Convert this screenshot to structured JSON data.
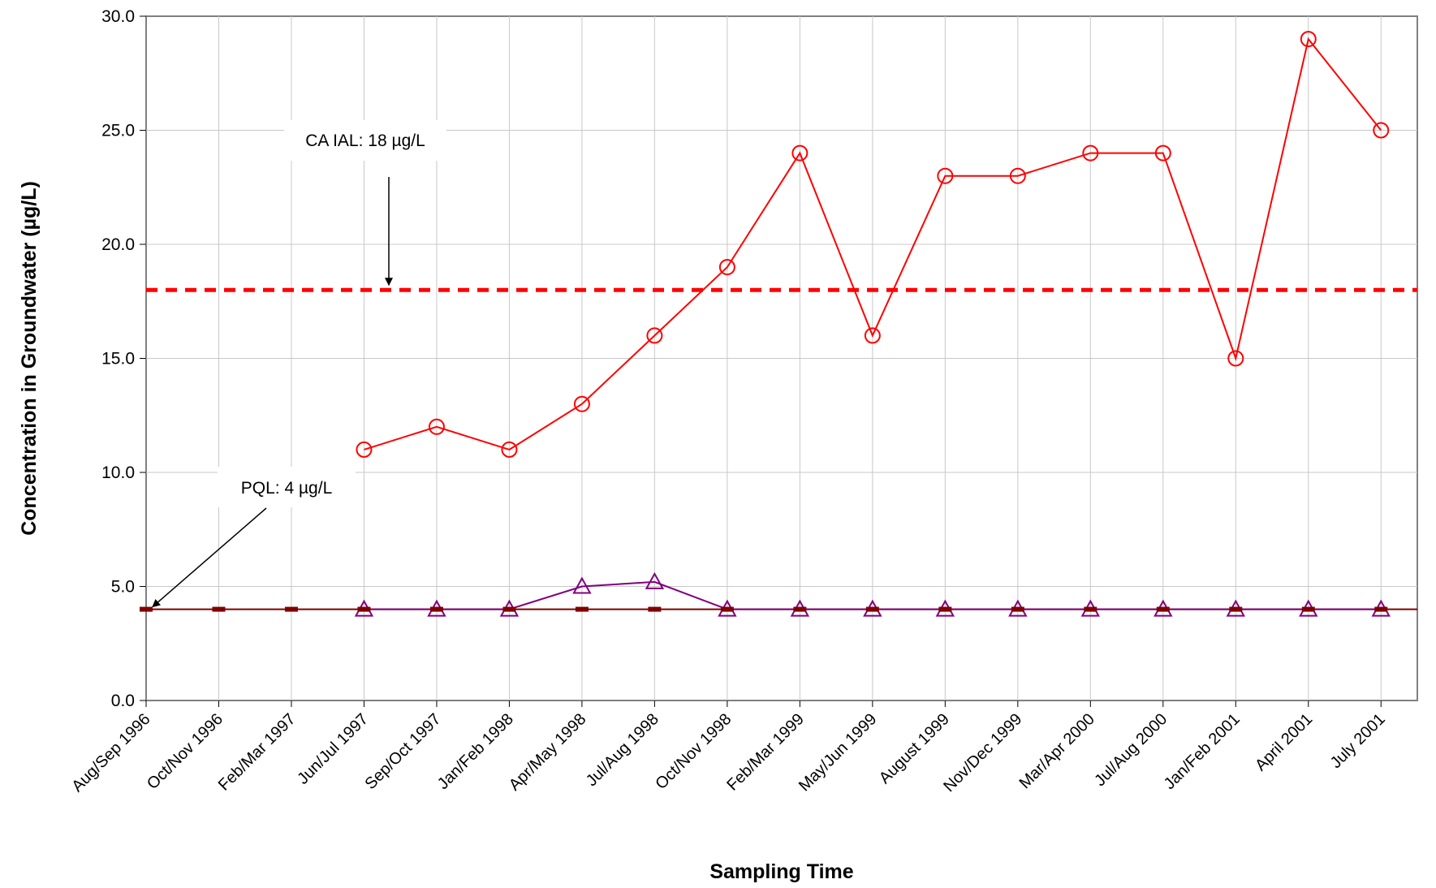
{
  "chart_data": {
    "type": "line",
    "title": "",
    "xlabel": "Sampling Time",
    "ylabel": "Concentration in Groundwater (µg/L)",
    "ylim": [
      0,
      30
    ],
    "yticks": [
      "0.0",
      "5.0",
      "10.0",
      "15.0",
      "20.0",
      "25.0",
      "30.0"
    ],
    "grid": true,
    "categories": [
      "Aug/Sep 1996",
      "Oct/Nov 1996",
      "Feb/Mar 1997",
      "Jun/Jul 1997",
      "Sep/Oct 1997",
      "Jan/Feb 1998",
      "Apr/May 1998",
      "Jul/Aug 1998",
      "Oct/Nov 1998",
      "Feb/Mar 1999",
      "May/Jun 1999",
      "August 1999",
      "Nov/Dec 1999",
      "Mar/Apr 2000",
      "Jul/Aug 2000",
      "Jan/Feb 2001",
      "April 2001",
      "July  2001"
    ],
    "series": [
      {
        "marker": "circle",
        "color": "#ff0000",
        "values": [
          null,
          null,
          null,
          11,
          12,
          11,
          13,
          16,
          19,
          24,
          16,
          23,
          23,
          24,
          24,
          15,
          29,
          25
        ]
      },
      {
        "marker": "triangle",
        "color": "#800080",
        "values": [
          null,
          null,
          null,
          4,
          4,
          4,
          5,
          5.2,
          4,
          4,
          4,
          4,
          4,
          4,
          4,
          4,
          4,
          4
        ]
      },
      {
        "marker": "dash",
        "color": "#800000",
        "values": [
          4,
          4,
          4,
          4,
          4,
          4,
          4,
          4,
          4,
          4,
          4,
          4,
          4,
          4,
          4,
          4,
          4,
          4
        ]
      }
    ],
    "reference_lines": [
      {
        "value": 18,
        "color": "#ff0000",
        "style": "dashed",
        "label": "CA IAL: 18 µg/L"
      },
      {
        "value": 4,
        "color": "#800000",
        "style": "solid",
        "label": "PQL: 4 µg/L"
      }
    ]
  }
}
